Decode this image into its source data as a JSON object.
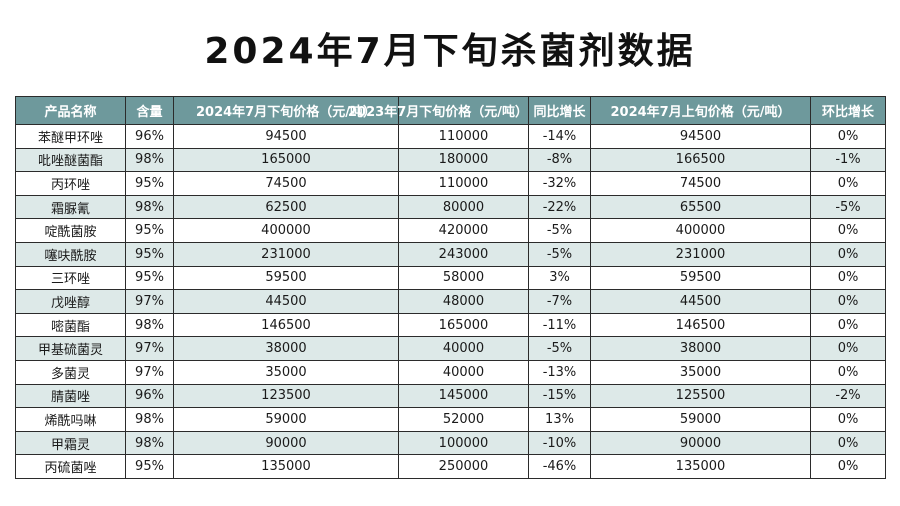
{
  "title": "2024年7月下旬杀菌剂数据",
  "headers": [
    "产品名称",
    "含量",
    "2024年7月下旬价格（元/吨）",
    "2023年7月下旬价格（元/吨）",
    "同比增长",
    "2024年7月上旬价格（元/吨）",
    "环比增长"
  ],
  "rows": [
    [
      "苯醚甲环唑",
      "96%",
      "94500",
      "110000",
      "-14%",
      "94500",
      "0%"
    ],
    [
      "吡唑醚菌酯",
      "98%",
      "165000",
      "180000",
      "-8%",
      "166500",
      "-1%"
    ],
    [
      "丙环唑",
      "95%",
      "74500",
      "110000",
      "-32%",
      "74500",
      "0%"
    ],
    [
      "霜脲氰",
      "98%",
      "62500",
      "80000",
      "-22%",
      "65500",
      "-5%"
    ],
    [
      "啶酰菌胺",
      "95%",
      "400000",
      "420000",
      "-5%",
      "400000",
      "0%"
    ],
    [
      "噻呋酰胺",
      "95%",
      "231000",
      "243000",
      "-5%",
      "231000",
      "0%"
    ],
    [
      "三环唑",
      "95%",
      "59500",
      "58000",
      "3%",
      "59500",
      "0%"
    ],
    [
      "戊唑醇",
      "97%",
      "44500",
      "48000",
      "-7%",
      "44500",
      "0%"
    ],
    [
      "嘧菌酯",
      "98%",
      "146500",
      "165000",
      "-11%",
      "146500",
      "0%"
    ],
    [
      "甲基硫菌灵",
      "97%",
      "38000",
      "40000",
      "-5%",
      "38000",
      "0%"
    ],
    [
      "多菌灵",
      "97%",
      "35000",
      "40000",
      "-13%",
      "35000",
      "0%"
    ],
    [
      "腈菌唑",
      "96%",
      "123500",
      "145000",
      "-15%",
      "125500",
      "-2%"
    ],
    [
      "烯酰吗啉",
      "98%",
      "59000",
      "52000",
      "13%",
      "59000",
      "0%"
    ],
    [
      "甲霜灵",
      "98%",
      "90000",
      "100000",
      "-10%",
      "90000",
      "0%"
    ],
    [
      "丙硫菌唑",
      "95%",
      "135000",
      "250000",
      "-46%",
      "135000",
      "0%"
    ]
  ]
}
